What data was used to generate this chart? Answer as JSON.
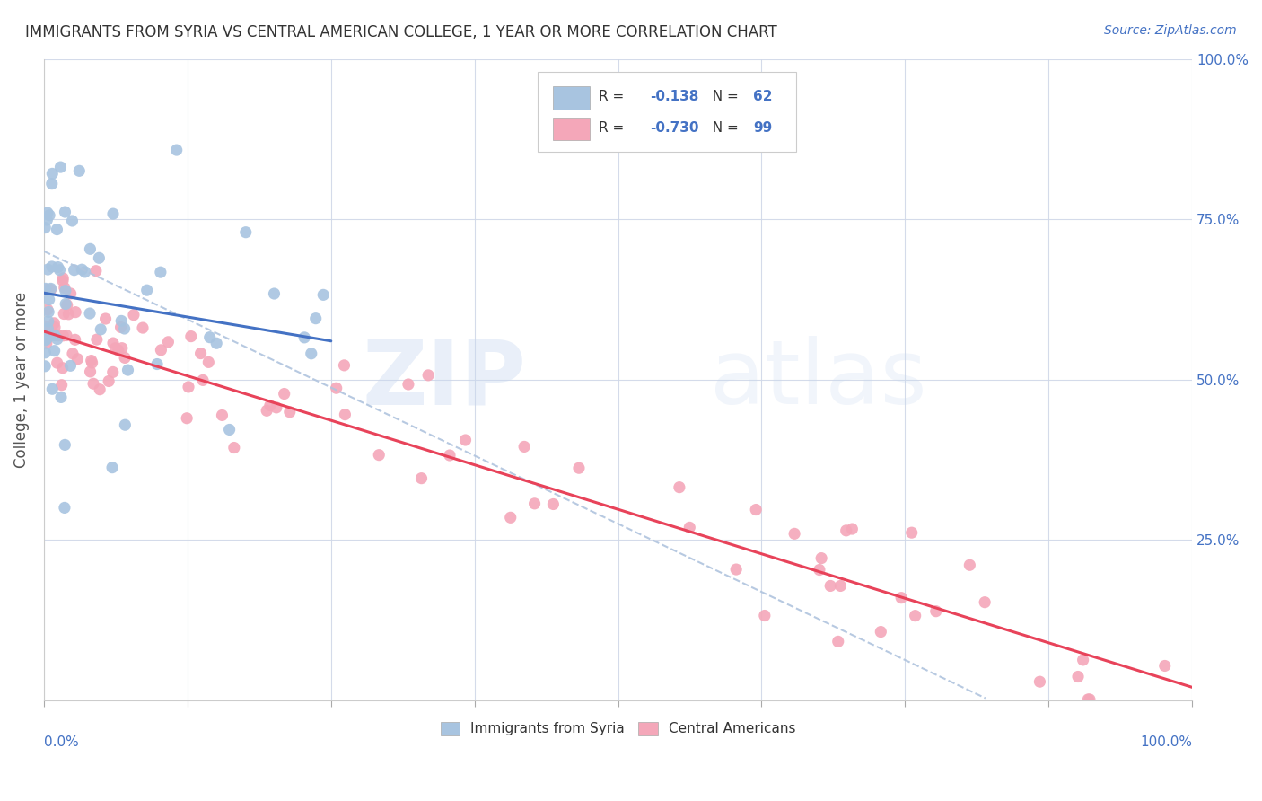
{
  "title": "IMMIGRANTS FROM SYRIA VS CENTRAL AMERICAN COLLEGE, 1 YEAR OR MORE CORRELATION CHART",
  "source": "Source: ZipAtlas.com",
  "ylabel": "College, 1 year or more",
  "syria_r": "-0.138",
  "syria_n": "62",
  "central_r": "-0.730",
  "central_n": "99",
  "syria_color": "#a8c4e0",
  "syria_line_color": "#4472c4",
  "central_color": "#f4a7b9",
  "central_line_color": "#e8435a",
  "dashed_line_color": "#b0c4de",
  "watermark_zip": "ZIP",
  "watermark_atlas": "atlas",
  "background_color": "#ffffff",
  "grid_color": "#d0d8e8",
  "legend_text_color": "#4472c4",
  "axis_label_color": "#4472c4",
  "title_color": "#333333",
  "ylabel_color": "#555555"
}
